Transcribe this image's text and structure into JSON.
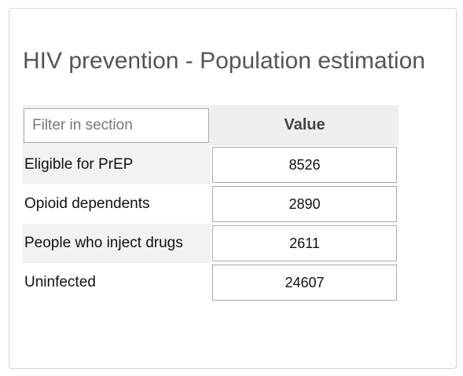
{
  "title": "HIV prevention - Population estimation",
  "filter": {
    "placeholder": "Filter in section"
  },
  "header": {
    "value_label": "Value"
  },
  "rows": [
    {
      "label": "Eligible for PrEP",
      "value": "8526"
    },
    {
      "label": "Opioid dependents",
      "value": "2890"
    },
    {
      "label": "People who inject drugs",
      "value": "2611"
    },
    {
      "label": "Uninfected",
      "value": "24607"
    }
  ]
}
